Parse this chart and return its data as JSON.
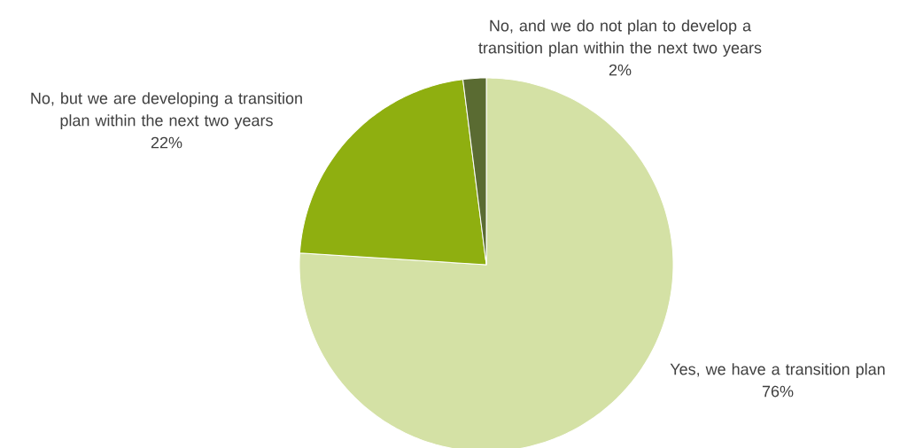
{
  "chart_data": {
    "type": "pie",
    "categories": [
      "Yes, we have a transition plan",
      "No, but we are developing a transition plan within the next two years",
      "No, and we do not plan to develop a transition plan within the next two years"
    ],
    "values": [
      76,
      22,
      2
    ],
    "value_labels": [
      "76%",
      "22%",
      "2%"
    ],
    "colors": [
      "#d4e1a5",
      "#8faf10",
      "#5a6b32"
    ]
  }
}
